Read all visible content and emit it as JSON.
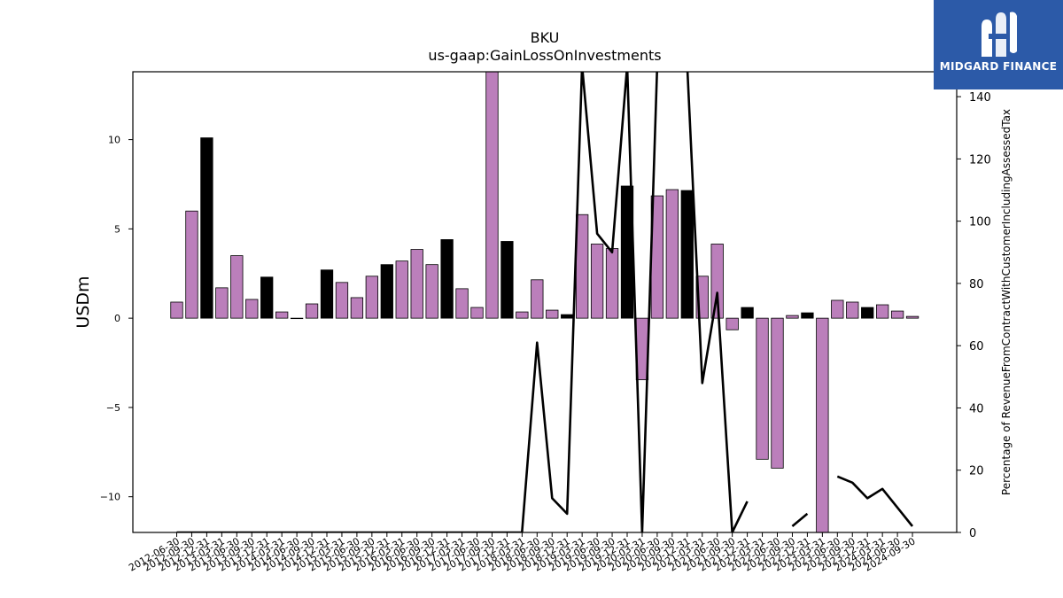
{
  "brand": {
    "name": "MIDGARD FINANCE",
    "color": "#2c5aa8"
  },
  "chart_data": {
    "type": "bar",
    "title": "BKU",
    "subtitle": "us-gaap:GainLossOnInvestments",
    "ylabel": "USDm",
    "y2label": "Percentage of RevenueFromContractWithCustomerIncludingAssessedTax",
    "ylim": [
      -12,
      13.8
    ],
    "y2lim": [
      0,
      148
    ],
    "yticks": [
      -10,
      -5,
      0,
      5,
      10
    ],
    "y2ticks": [
      0,
      20,
      40,
      60,
      80,
      100,
      120,
      140
    ],
    "colors": {
      "bar": "#bb7fbb",
      "bar_q4": "#000000",
      "line": "#000000"
    },
    "categories": [
      "2012-06-30",
      "2012-09-30",
      "2012-12-31",
      "2013-03-31",
      "2013-06-30",
      "2013-09-30",
      "2013-12-31",
      "2014-03-31",
      "2014-06-30",
      "2014-09-30",
      "2014-12-31",
      "2015-03-31",
      "2015-06-30",
      "2015-09-30",
      "2015-12-31",
      "2016-03-31",
      "2016-06-30",
      "2016-09-30",
      "2016-12-31",
      "2017-03-31",
      "2017-06-30",
      "2017-09-30",
      "2017-12-31",
      "2018-03-31",
      "2018-06-30",
      "2018-09-30",
      "2018-12-31",
      "2019-03-31",
      "2019-06-30",
      "2019-09-30",
      "2019-12-31",
      "2020-03-31",
      "2020-06-30",
      "2020-09-30",
      "2020-12-31",
      "2021-03-31",
      "2021-06-30",
      "2021-09-30",
      "2021-12-31",
      "2022-03-31",
      "2022-06-30",
      "2022-09-30",
      "2022-12-31",
      "2023-03-31",
      "2023-06-30",
      "2023-09-30",
      "2023-12-31",
      "2024-03-31",
      "2024-06-30",
      "2024-09-30"
    ],
    "series": [
      {
        "type": "bar",
        "values": [
          0.9,
          6.0,
          10.1,
          1.7,
          3.5,
          1.05,
          2.3,
          0.35,
          0.0,
          0.8,
          2.7,
          2.0,
          1.15,
          2.35,
          3.0,
          3.2,
          3.85,
          3.0,
          4.4,
          1.65,
          0.6,
          13.9,
          4.3,
          0.35,
          2.15,
          0.45,
          0.2,
          5.8,
          4.15,
          3.9,
          7.4,
          -3.45,
          6.85,
          7.2,
          7.15,
          2.35,
          4.15,
          -0.65,
          0.6,
          -7.9,
          -8.4,
          0.15,
          0.3,
          -12.0,
          1.0,
          0.9,
          0.6,
          0.75,
          0.4,
          0.1
        ]
      },
      {
        "type": "line",
        "axis": "right",
        "values": [
          0,
          0,
          0,
          0,
          0,
          0,
          0,
          0,
          0,
          0,
          0,
          0,
          0,
          0,
          0,
          0,
          0,
          0,
          0,
          0,
          0,
          0,
          0,
          0,
          61,
          11,
          6,
          150,
          96,
          90,
          150,
          0,
          150,
          150,
          150,
          48,
          77,
          0,
          10,
          null,
          null,
          2,
          6,
          null,
          18,
          16,
          11,
          14,
          8,
          2
        ]
      }
    ]
  }
}
